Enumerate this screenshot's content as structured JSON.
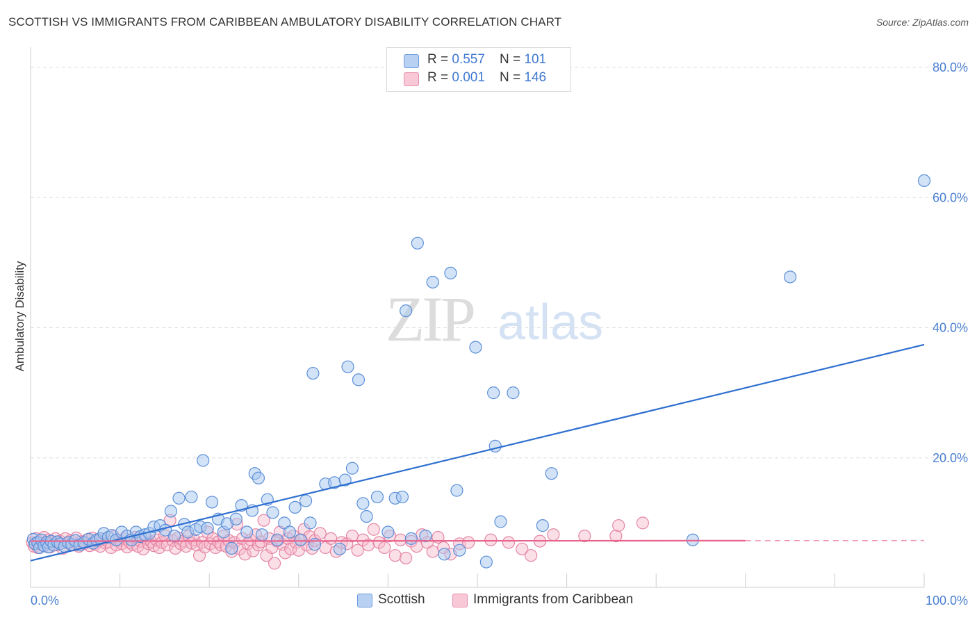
{
  "title": "SCOTTISH VS IMMIGRANTS FROM CARIBBEAN AMBULATORY DISABILITY CORRELATION CHART",
  "source": "Source: ZipAtlas.com",
  "watermark": {
    "zip": "ZIP",
    "atlas": "atlas"
  },
  "legend_top": {
    "rows": [
      {
        "r_label": "R = ",
        "r_value": "0.557",
        "n_label": "N = ",
        "n_value": "101"
      },
      {
        "r_label": "R = ",
        "r_value": "0.001",
        "n_label": "N = ",
        "n_value": "146"
      }
    ]
  },
  "colors": {
    "scottish_fill": "#a8c8f0",
    "scottish_stroke": "#5b8fd8",
    "scottish_line": "#2e6fd0",
    "caribbean_fill": "#f6b8ca",
    "caribbean_stroke": "#e486a6",
    "caribbean_line": "#e8658e",
    "grid": "#dddddd",
    "axis_text": "#4a7fd0"
  },
  "chart_data": {
    "type": "scatter",
    "title": "SCOTTISH VS IMMIGRANTS FROM CARIBBEAN AMBULATORY DISABILITY CORRELATION CHART",
    "ylabel": "Ambulatory Disability",
    "xlabel": "",
    "xlim": [
      0,
      100
    ],
    "ylim": [
      0,
      84
    ],
    "x_tick_labels": [
      "0.0%",
      "100.0%"
    ],
    "y_ticks": [
      20,
      40,
      60,
      80
    ],
    "y_tick_labels": [
      "20.0%",
      "40.0%",
      "60.0%",
      "80.0%"
    ],
    "grid": true,
    "legend_position": "bottom-center",
    "series": [
      {
        "name": "Scottish",
        "r": 0.557,
        "n": 101,
        "trend": {
          "x0": 0,
          "y0": 4.2,
          "x1": 100,
          "y1": 37.4,
          "dashed_from": null
        },
        "points": [
          [
            0.3,
            7.5
          ],
          [
            0.5,
            6.8
          ],
          [
            0.8,
            7.0
          ],
          [
            1.0,
            6.2
          ],
          [
            1.2,
            7.4
          ],
          [
            1.5,
            6.5
          ],
          [
            1.8,
            7.0
          ],
          [
            2.0,
            6.3
          ],
          [
            2.3,
            7.2
          ],
          [
            2.6,
            6.6
          ],
          [
            3.0,
            7.1
          ],
          [
            3.3,
            6.8
          ],
          [
            3.8,
            6.4
          ],
          [
            4.2,
            7.0
          ],
          [
            4.6,
            6.7
          ],
          [
            5.0,
            7.3
          ],
          [
            5.5,
            6.6
          ],
          [
            6.0,
            7.0
          ],
          [
            6.5,
            7.5
          ],
          [
            7.0,
            6.9
          ],
          [
            7.4,
            7.4
          ],
          [
            7.8,
            7.6
          ],
          [
            8.2,
            8.4
          ],
          [
            8.7,
            7.8
          ],
          [
            9.1,
            8.1
          ],
          [
            9.6,
            7.4
          ],
          [
            10.2,
            8.6
          ],
          [
            10.8,
            8.0
          ],
          [
            11.3,
            7.4
          ],
          [
            11.8,
            8.6
          ],
          [
            12.3,
            7.9
          ],
          [
            12.8,
            8.2
          ],
          [
            13.3,
            8.4
          ],
          [
            13.8,
            9.4
          ],
          [
            14.5,
            9.6
          ],
          [
            15.1,
            8.9
          ],
          [
            15.7,
            11.8
          ],
          [
            16.1,
            8.0
          ],
          [
            16.6,
            13.8
          ],
          [
            17.2,
            9.8
          ],
          [
            17.6,
            8.6
          ],
          [
            18.0,
            14.0
          ],
          [
            18.5,
            9.0
          ],
          [
            19.0,
            9.4
          ],
          [
            19.3,
            19.6
          ],
          [
            19.8,
            9.2
          ],
          [
            20.3,
            13.2
          ],
          [
            21.0,
            10.6
          ],
          [
            21.6,
            8.6
          ],
          [
            22.0,
            9.9
          ],
          [
            22.5,
            6.1
          ],
          [
            23.0,
            10.6
          ],
          [
            23.6,
            12.7
          ],
          [
            24.2,
            8.6
          ],
          [
            24.8,
            11.9
          ],
          [
            25.1,
            17.6
          ],
          [
            25.5,
            16.9
          ],
          [
            25.9,
            8.2
          ],
          [
            26.5,
            13.6
          ],
          [
            27.1,
            11.6
          ],
          [
            27.6,
            7.4
          ],
          [
            28.4,
            10.0
          ],
          [
            29.0,
            8.6
          ],
          [
            29.6,
            12.4
          ],
          [
            30.2,
            7.4
          ],
          [
            30.8,
            13.4
          ],
          [
            31.3,
            10.0
          ],
          [
            31.6,
            33.0
          ],
          [
            31.8,
            6.7
          ],
          [
            33.0,
            16.0
          ],
          [
            34.0,
            16.2
          ],
          [
            34.6,
            6.0
          ],
          [
            35.2,
            16.6
          ],
          [
            35.5,
            34.0
          ],
          [
            36.0,
            18.4
          ],
          [
            36.7,
            32.0
          ],
          [
            37.2,
            13.0
          ],
          [
            37.6,
            11.0
          ],
          [
            38.8,
            14.0
          ],
          [
            40.0,
            8.6
          ],
          [
            40.8,
            13.8
          ],
          [
            41.6,
            14.0
          ],
          [
            42.0,
            42.6
          ],
          [
            42.6,
            7.6
          ],
          [
            43.3,
            53.0
          ],
          [
            44.2,
            8.0
          ],
          [
            45.0,
            47.0
          ],
          [
            46.3,
            5.2
          ],
          [
            47.0,
            48.4
          ],
          [
            47.7,
            15.0
          ],
          [
            48.0,
            5.8
          ],
          [
            49.8,
            37.0
          ],
          [
            51.0,
            4.0
          ],
          [
            51.8,
            30.0
          ],
          [
            52.0,
            21.8
          ],
          [
            52.6,
            10.2
          ],
          [
            54.0,
            30.0
          ],
          [
            57.3,
            9.6
          ],
          [
            58.3,
            17.6
          ],
          [
            74.1,
            7.4
          ],
          [
            85.0,
            47.8
          ],
          [
            100.0,
            62.6
          ]
        ]
      },
      {
        "name": "Immigrants from Caribbean",
        "r": 0.001,
        "n": 146,
        "trend": {
          "x0": 0,
          "y0": 7.2,
          "x1": 100,
          "y1": 7.3,
          "dashed_from": 80
        },
        "points": [
          [
            0.2,
            7.0
          ],
          [
            0.4,
            6.4
          ],
          [
            0.6,
            7.6
          ],
          [
            0.8,
            6.2
          ],
          [
            1.0,
            7.2
          ],
          [
            1.3,
            6.6
          ],
          [
            1.5,
            7.8
          ],
          [
            1.7,
            6.9
          ],
          [
            2.0,
            7.4
          ],
          [
            2.2,
            6.3
          ],
          [
            2.5,
            7.0
          ],
          [
            2.8,
            7.6
          ],
          [
            3.0,
            6.6
          ],
          [
            3.3,
            7.2
          ],
          [
            3.6,
            6.1
          ],
          [
            3.9,
            7.6
          ],
          [
            4.2,
            6.9
          ],
          [
            4.5,
            7.3
          ],
          [
            4.8,
            6.6
          ],
          [
            5.1,
            7.7
          ],
          [
            5.4,
            6.4
          ],
          [
            5.7,
            7.1
          ],
          [
            6.0,
            6.8
          ],
          [
            6.3,
            7.4
          ],
          [
            6.6,
            6.5
          ],
          [
            6.9,
            7.7
          ],
          [
            7.2,
            6.7
          ],
          [
            7.5,
            7.2
          ],
          [
            7.8,
            6.4
          ],
          [
            8.1,
            7.5
          ],
          [
            8.4,
            6.9
          ],
          [
            8.7,
            7.1
          ],
          [
            9.0,
            6.2
          ],
          [
            9.3,
            7.9
          ],
          [
            9.6,
            6.6
          ],
          [
            9.9,
            7.3
          ],
          [
            10.2,
            6.8
          ],
          [
            10.5,
            7.6
          ],
          [
            10.8,
            6.3
          ],
          [
            11.1,
            7.0
          ],
          [
            11.4,
            6.7
          ],
          [
            11.7,
            7.8
          ],
          [
            12.0,
            6.4
          ],
          [
            12.3,
            7.2
          ],
          [
            12.6,
            6.0
          ],
          [
            12.9,
            7.6
          ],
          [
            13.2,
            6.8
          ],
          [
            13.5,
            7.1
          ],
          [
            13.8,
            6.5
          ],
          [
            14.1,
            7.4
          ],
          [
            14.4,
            6.2
          ],
          [
            14.7,
            7.0
          ],
          [
            15.0,
            8.1
          ],
          [
            15.3,
            6.6
          ],
          [
            15.6,
            10.4
          ],
          [
            15.9,
            7.3
          ],
          [
            16.2,
            6.1
          ],
          [
            16.5,
            7.7
          ],
          [
            16.8,
            6.8
          ],
          [
            17.1,
            7.2
          ],
          [
            17.4,
            6.4
          ],
          [
            17.7,
            8.0
          ],
          [
            18.0,
            6.9
          ],
          [
            18.3,
            7.4
          ],
          [
            18.6,
            6.6
          ],
          [
            18.9,
            5.0
          ],
          [
            19.2,
            7.0
          ],
          [
            19.5,
            6.3
          ],
          [
            19.8,
            8.6
          ],
          [
            20.1,
            6.8
          ],
          [
            20.4,
            7.6
          ],
          [
            20.7,
            6.2
          ],
          [
            21.0,
            7.1
          ],
          [
            21.3,
            6.6
          ],
          [
            21.6,
            8.0
          ],
          [
            21.9,
            6.4
          ],
          [
            22.2,
            7.3
          ],
          [
            22.5,
            5.6
          ],
          [
            22.8,
            7.0
          ],
          [
            23.1,
            9.8
          ],
          [
            23.4,
            6.0
          ],
          [
            23.7,
            7.6
          ],
          [
            24.0,
            5.2
          ],
          [
            24.3,
            6.8
          ],
          [
            24.6,
            7.4
          ],
          [
            24.9,
            5.7
          ],
          [
            25.2,
            8.2
          ],
          [
            25.5,
            6.6
          ],
          [
            25.8,
            7.1
          ],
          [
            26.1,
            10.4
          ],
          [
            26.4,
            5.0
          ],
          [
            26.7,
            7.6
          ],
          [
            27.0,
            6.2
          ],
          [
            27.3,
            3.8
          ],
          [
            27.6,
            7.2
          ],
          [
            27.9,
            8.6
          ],
          [
            28.2,
            6.7
          ],
          [
            28.5,
            5.4
          ],
          [
            28.8,
            7.6
          ],
          [
            29.1,
            6.0
          ],
          [
            29.4,
            8.0
          ],
          [
            29.7,
            7.0
          ],
          [
            30.0,
            5.8
          ],
          [
            30.3,
            7.4
          ],
          [
            30.6,
            9.0
          ],
          [
            30.9,
            6.6
          ],
          [
            31.2,
            7.9
          ],
          [
            31.5,
            6.1
          ],
          [
            31.8,
            7.3
          ],
          [
            32.4,
            8.4
          ],
          [
            33.0,
            6.2
          ],
          [
            33.6,
            7.6
          ],
          [
            34.2,
            5.6
          ],
          [
            34.8,
            7.0
          ],
          [
            35.4,
            6.8
          ],
          [
            36.0,
            8.0
          ],
          [
            36.6,
            5.8
          ],
          [
            37.2,
            7.4
          ],
          [
            37.8,
            6.6
          ],
          [
            38.4,
            9.0
          ],
          [
            39.0,
            7.0
          ],
          [
            39.6,
            6.2
          ],
          [
            40.2,
            8.0
          ],
          [
            40.8,
            5.0
          ],
          [
            41.4,
            7.4
          ],
          [
            42.0,
            4.6
          ],
          [
            42.6,
            7.2
          ],
          [
            43.2,
            6.4
          ],
          [
            43.8,
            8.2
          ],
          [
            44.4,
            7.0
          ],
          [
            45.0,
            5.6
          ],
          [
            45.6,
            7.8
          ],
          [
            46.2,
            6.2
          ],
          [
            47.0,
            5.2
          ],
          [
            48.0,
            6.8
          ],
          [
            49.0,
            7.0
          ],
          [
            51.5,
            7.4
          ],
          [
            53.5,
            7.0
          ],
          [
            55.0,
            6.0
          ],
          [
            56.0,
            5.0
          ],
          [
            57.0,
            7.2
          ],
          [
            58.5,
            8.2
          ],
          [
            62.0,
            8.0
          ],
          [
            65.5,
            8.0
          ],
          [
            65.8,
            9.6
          ],
          [
            68.5,
            10.0
          ]
        ]
      }
    ]
  }
}
